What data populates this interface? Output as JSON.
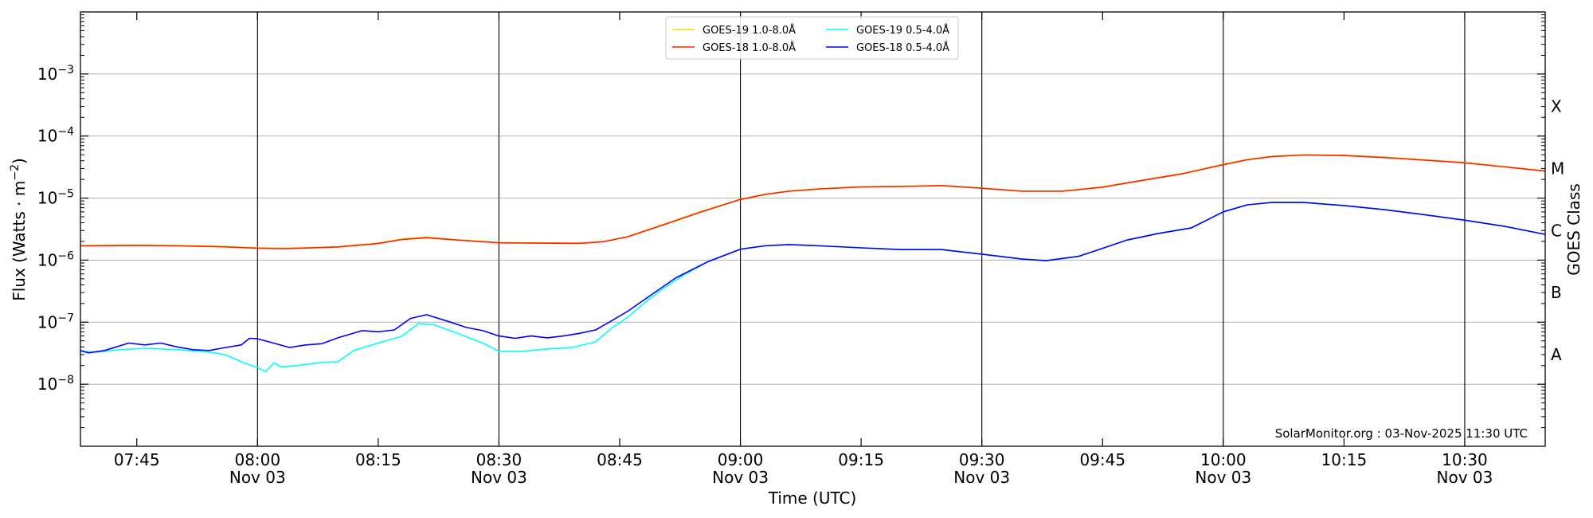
{
  "chart_data": {
    "type": "line",
    "title": "",
    "xlabel": "Time (UTC)",
    "ylabel": "Flux (Watts · m",
    "ylabel_sup": "−2",
    "ylabel_close": ")",
    "right_label": "GOES Class",
    "yscale": "log",
    "ylim": [
      1e-09,
      0.01
    ],
    "xlim": [
      "07:38",
      "10:40"
    ],
    "y_tick_labels": [
      {
        "base": "10",
        "exp": "−8",
        "value": 1e-08
      },
      {
        "base": "10",
        "exp": "−7",
        "value": 1e-07
      },
      {
        "base": "10",
        "exp": "−6",
        "value": 1e-06
      },
      {
        "base": "10",
        "exp": "−5",
        "value": 1e-05
      },
      {
        "base": "10",
        "exp": "−4",
        "value": 0.0001
      },
      {
        "base": "10",
        "exp": "−3",
        "value": 0.001
      }
    ],
    "x_ticks": [
      {
        "time": "07:45",
        "label": "07:45",
        "date": ""
      },
      {
        "time": "08:00",
        "label": "08:00",
        "date": "Nov 03"
      },
      {
        "time": "08:15",
        "label": "08:15",
        "date": ""
      },
      {
        "time": "08:30",
        "label": "08:30",
        "date": "Nov 03"
      },
      {
        "time": "08:45",
        "label": "08:45",
        "date": ""
      },
      {
        "time": "09:00",
        "label": "09:00",
        "date": "Nov 03"
      },
      {
        "time": "09:15",
        "label": "09:15",
        "date": ""
      },
      {
        "time": "09:30",
        "label": "09:30",
        "date": "Nov 03"
      },
      {
        "time": "09:45",
        "label": "09:45",
        "date": ""
      },
      {
        "time": "10:00",
        "label": "10:00",
        "date": "Nov 03"
      },
      {
        "time": "10:15",
        "label": "10:15",
        "date": ""
      },
      {
        "time": "10:30",
        "label": "10:30",
        "date": "Nov 03"
      }
    ],
    "vertical_lines": [
      "08:00",
      "08:30",
      "09:00",
      "09:30",
      "10:00",
      "10:30"
    ],
    "goes_classes": [
      {
        "label": "A",
        "value": 3e-08
      },
      {
        "label": "B",
        "value": 3e-07
      },
      {
        "label": "C",
        "value": 3e-06
      },
      {
        "label": "M",
        "value": 3e-05
      },
      {
        "label": "X",
        "value": 0.0003
      }
    ],
    "grid": {
      "horizontal": true
    },
    "legend": {
      "placement": "top-center",
      "columns": 2
    },
    "credit": "SolarMonitor.org : 03-Nov-2025 11:30 UTC",
    "series": [
      {
        "name": "GOES-19 1.0-8.0Å",
        "color": "#ffd700",
        "points": [
          [
            "07:38",
            1.72e-06
          ],
          [
            "07:45",
            1.75e-06
          ],
          [
            "07:50",
            1.72e-06
          ],
          [
            "07:55",
            1.68e-06
          ],
          [
            "08:00",
            1.58e-06
          ],
          [
            "08:03",
            1.55e-06
          ],
          [
            "08:05",
            1.57e-06
          ],
          [
            "08:10",
            1.65e-06
          ],
          [
            "08:15",
            1.88e-06
          ],
          [
            "08:18",
            2.2e-06
          ],
          [
            "08:21",
            2.35e-06
          ],
          [
            "08:25",
            2.12e-06
          ],
          [
            "08:30",
            1.92e-06
          ],
          [
            "08:35",
            1.9e-06
          ],
          [
            "08:40",
            1.88e-06
          ],
          [
            "08:43",
            2e-06
          ],
          [
            "08:46",
            2.4e-06
          ],
          [
            "08:50",
            3.6e-06
          ],
          [
            "08:55",
            6e-06
          ],
          [
            "09:00",
            9.6e-06
          ],
          [
            "09:03",
            1.15e-05
          ],
          [
            "09:06",
            1.3e-05
          ],
          [
            "09:10",
            1.42e-05
          ],
          [
            "09:15",
            1.52e-05
          ],
          [
            "09:20",
            1.55e-05
          ],
          [
            "09:25",
            1.6e-05
          ],
          [
            "09:30",
            1.45e-05
          ],
          [
            "09:35",
            1.3e-05
          ],
          [
            "09:40",
            1.3e-05
          ],
          [
            "09:45",
            1.52e-05
          ],
          [
            "09:50",
            1.95e-05
          ],
          [
            "09:55",
            2.5e-05
          ],
          [
            "10:00",
            3.5e-05
          ],
          [
            "10:03",
            4.2e-05
          ],
          [
            "10:06",
            4.7e-05
          ],
          [
            "10:10",
            5e-05
          ],
          [
            "10:15",
            4.9e-05
          ],
          [
            "10:20",
            4.55e-05
          ],
          [
            "10:25",
            4.15e-05
          ],
          [
            "10:30",
            3.75e-05
          ],
          [
            "10:35",
            3.2e-05
          ],
          [
            "10:40",
            2.75e-05
          ]
        ]
      },
      {
        "name": "GOES-18 1.0-8.0Å",
        "color": "#ff2200",
        "points": [
          [
            "07:38",
            1.7e-06
          ],
          [
            "07:45",
            1.72e-06
          ],
          [
            "07:50",
            1.7e-06
          ],
          [
            "07:55",
            1.65e-06
          ],
          [
            "08:00",
            1.56e-06
          ],
          [
            "08:03",
            1.53e-06
          ],
          [
            "08:05",
            1.55e-06
          ],
          [
            "08:10",
            1.63e-06
          ],
          [
            "08:15",
            1.85e-06
          ],
          [
            "08:18",
            2.15e-06
          ],
          [
            "08:21",
            2.3e-06
          ],
          [
            "08:25",
            2.1e-06
          ],
          [
            "08:30",
            1.9e-06
          ],
          [
            "08:35",
            1.88e-06
          ],
          [
            "08:40",
            1.86e-06
          ],
          [
            "08:43",
            1.98e-06
          ],
          [
            "08:46",
            2.38e-06
          ],
          [
            "08:50",
            3.55e-06
          ],
          [
            "08:55",
            5.9e-06
          ],
          [
            "09:00",
            9.5e-06
          ],
          [
            "09:03",
            1.14e-05
          ],
          [
            "09:06",
            1.29e-05
          ],
          [
            "09:10",
            1.41e-05
          ],
          [
            "09:15",
            1.51e-05
          ],
          [
            "09:20",
            1.54e-05
          ],
          [
            "09:25",
            1.59e-05
          ],
          [
            "09:30",
            1.44e-05
          ],
          [
            "09:35",
            1.29e-05
          ],
          [
            "09:40",
            1.29e-05
          ],
          [
            "09:45",
            1.5e-05
          ],
          [
            "09:50",
            1.93e-05
          ],
          [
            "09:55",
            2.48e-05
          ],
          [
            "10:00",
            3.45e-05
          ],
          [
            "10:03",
            4.15e-05
          ],
          [
            "10:06",
            4.65e-05
          ],
          [
            "10:10",
            4.95e-05
          ],
          [
            "10:15",
            4.85e-05
          ],
          [
            "10:20",
            4.5e-05
          ],
          [
            "10:25",
            4.1e-05
          ],
          [
            "10:30",
            3.7e-05
          ],
          [
            "10:35",
            3.18e-05
          ],
          [
            "10:40",
            2.72e-05
          ]
        ]
      },
      {
        "name": "GOES-19 0.5-4.0Å",
        "color": "#00ffff",
        "points": [
          [
            "07:38",
            3.4e-08
          ],
          [
            "07:40",
            3.3e-08
          ],
          [
            "07:43",
            3.6e-08
          ],
          [
            "07:46",
            3.8e-08
          ],
          [
            "07:50",
            3.6e-08
          ],
          [
            "07:54",
            3.3e-08
          ],
          [
            "07:56",
            3e-08
          ],
          [
            "07:58",
            2.3e-08
          ],
          [
            "08:00",
            1.85e-08
          ],
          [
            "08:01",
            1.6e-08
          ],
          [
            "08:02",
            2.2e-08
          ],
          [
            "08:03",
            1.9e-08
          ],
          [
            "08:05",
            2e-08
          ],
          [
            "08:08",
            2.25e-08
          ],
          [
            "08:10",
            2.3e-08
          ],
          [
            "08:12",
            3.5e-08
          ],
          [
            "08:15",
            4.6e-08
          ],
          [
            "08:18",
            6e-08
          ],
          [
            "08:20",
            9.5e-08
          ],
          [
            "08:22",
            9e-08
          ],
          [
            "08:25",
            6.5e-08
          ],
          [
            "08:28",
            4.6e-08
          ],
          [
            "08:30",
            3.4e-08
          ],
          [
            "08:33",
            3.4e-08
          ],
          [
            "08:36",
            3.7e-08
          ],
          [
            "08:39",
            3.9e-08
          ],
          [
            "08:42",
            4.8e-08
          ],
          [
            "08:44",
            8e-08
          ],
          [
            "08:46",
            1.2e-07
          ],
          [
            "08:48",
            2e-07
          ],
          [
            "08:50",
            3.2e-07
          ],
          [
            "08:53",
            5.8e-07
          ],
          [
            "08:56",
            9.5e-07
          ],
          [
            "09:00",
            1.5e-06
          ],
          [
            "09:03",
            1.7e-06
          ],
          [
            "09:06",
            1.78e-06
          ],
          [
            "09:10",
            1.7e-06
          ],
          [
            "09:15",
            1.58e-06
          ],
          [
            "09:20",
            1.48e-06
          ],
          [
            "09:25",
            1.48e-06
          ],
          [
            "09:30",
            1.25e-06
          ],
          [
            "09:35",
            1.04e-06
          ],
          [
            "09:38",
            9.8e-07
          ],
          [
            "09:42",
            1.15e-06
          ],
          [
            "09:45",
            1.55e-06
          ],
          [
            "09:48",
            2.1e-06
          ],
          [
            "09:52",
            2.7e-06
          ],
          [
            "09:56",
            3.3e-06
          ],
          [
            "10:00",
            6e-06
          ],
          [
            "10:03",
            7.8e-06
          ],
          [
            "10:06",
            8.5e-06
          ],
          [
            "10:10",
            8.5e-06
          ],
          [
            "10:15",
            7.6e-06
          ],
          [
            "10:20",
            6.5e-06
          ],
          [
            "10:25",
            5.4e-06
          ],
          [
            "10:30",
            4.4e-06
          ],
          [
            "10:35",
            3.5e-06
          ],
          [
            "10:40",
            2.6e-06
          ]
        ]
      },
      {
        "name": "GOES-18 0.5-4.0Å",
        "color": "#0000ff",
        "points": [
          [
            "07:38",
            3.5e-08
          ],
          [
            "07:39",
            3.2e-08
          ],
          [
            "07:41",
            3.5e-08
          ],
          [
            "07:44",
            4.6e-08
          ],
          [
            "07:46",
            4.3e-08
          ],
          [
            "07:48",
            4.6e-08
          ],
          [
            "07:50",
            4e-08
          ],
          [
            "07:52",
            3.6e-08
          ],
          [
            "07:54",
            3.5e-08
          ],
          [
            "07:56",
            3.9e-08
          ],
          [
            "07:58",
            4.3e-08
          ],
          [
            "07:59",
            5.5e-08
          ],
          [
            "08:00",
            5.4e-08
          ],
          [
            "08:02",
            4.6e-08
          ],
          [
            "08:04",
            3.9e-08
          ],
          [
            "08:06",
            4.3e-08
          ],
          [
            "08:08",
            4.5e-08
          ],
          [
            "08:10",
            5.6e-08
          ],
          [
            "08:13",
            7.3e-08
          ],
          [
            "08:15",
            7e-08
          ],
          [
            "08:17",
            7.5e-08
          ],
          [
            "08:19",
            1.15e-07
          ],
          [
            "08:21",
            1.32e-07
          ],
          [
            "08:24",
            1e-07
          ],
          [
            "08:26",
            8.2e-08
          ],
          [
            "08:28",
            7.3e-08
          ],
          [
            "08:30",
            6e-08
          ],
          [
            "08:32",
            5.5e-08
          ],
          [
            "08:34",
            6e-08
          ],
          [
            "08:36",
            5.6e-08
          ],
          [
            "08:38",
            6e-08
          ],
          [
            "08:40",
            6.6e-08
          ],
          [
            "08:42",
            7.5e-08
          ],
          [
            "08:44",
            1.05e-07
          ],
          [
            "08:46",
            1.5e-07
          ],
          [
            "08:49",
            2.8e-07
          ],
          [
            "08:52",
            5.2e-07
          ],
          [
            "08:56",
            9.5e-07
          ],
          [
            "09:00",
            1.5e-06
          ],
          [
            "09:03",
            1.7e-06
          ],
          [
            "09:06",
            1.78e-06
          ],
          [
            "09:10",
            1.7e-06
          ],
          [
            "09:15",
            1.58e-06
          ],
          [
            "09:20",
            1.48e-06
          ],
          [
            "09:25",
            1.48e-06
          ],
          [
            "09:30",
            1.25e-06
          ],
          [
            "09:35",
            1.04e-06
          ],
          [
            "09:38",
            9.8e-07
          ],
          [
            "09:42",
            1.15e-06
          ],
          [
            "09:45",
            1.55e-06
          ],
          [
            "09:48",
            2.1e-06
          ],
          [
            "09:52",
            2.7e-06
          ],
          [
            "09:56",
            3.3e-06
          ],
          [
            "10:00",
            6e-06
          ],
          [
            "10:03",
            7.8e-06
          ],
          [
            "10:06",
            8.5e-06
          ],
          [
            "10:10",
            8.5e-06
          ],
          [
            "10:15",
            7.6e-06
          ],
          [
            "10:20",
            6.5e-06
          ],
          [
            "10:25",
            5.4e-06
          ],
          [
            "10:30",
            4.4e-06
          ],
          [
            "10:35",
            3.5e-06
          ],
          [
            "10:40",
            2.6e-06
          ]
        ]
      }
    ]
  }
}
